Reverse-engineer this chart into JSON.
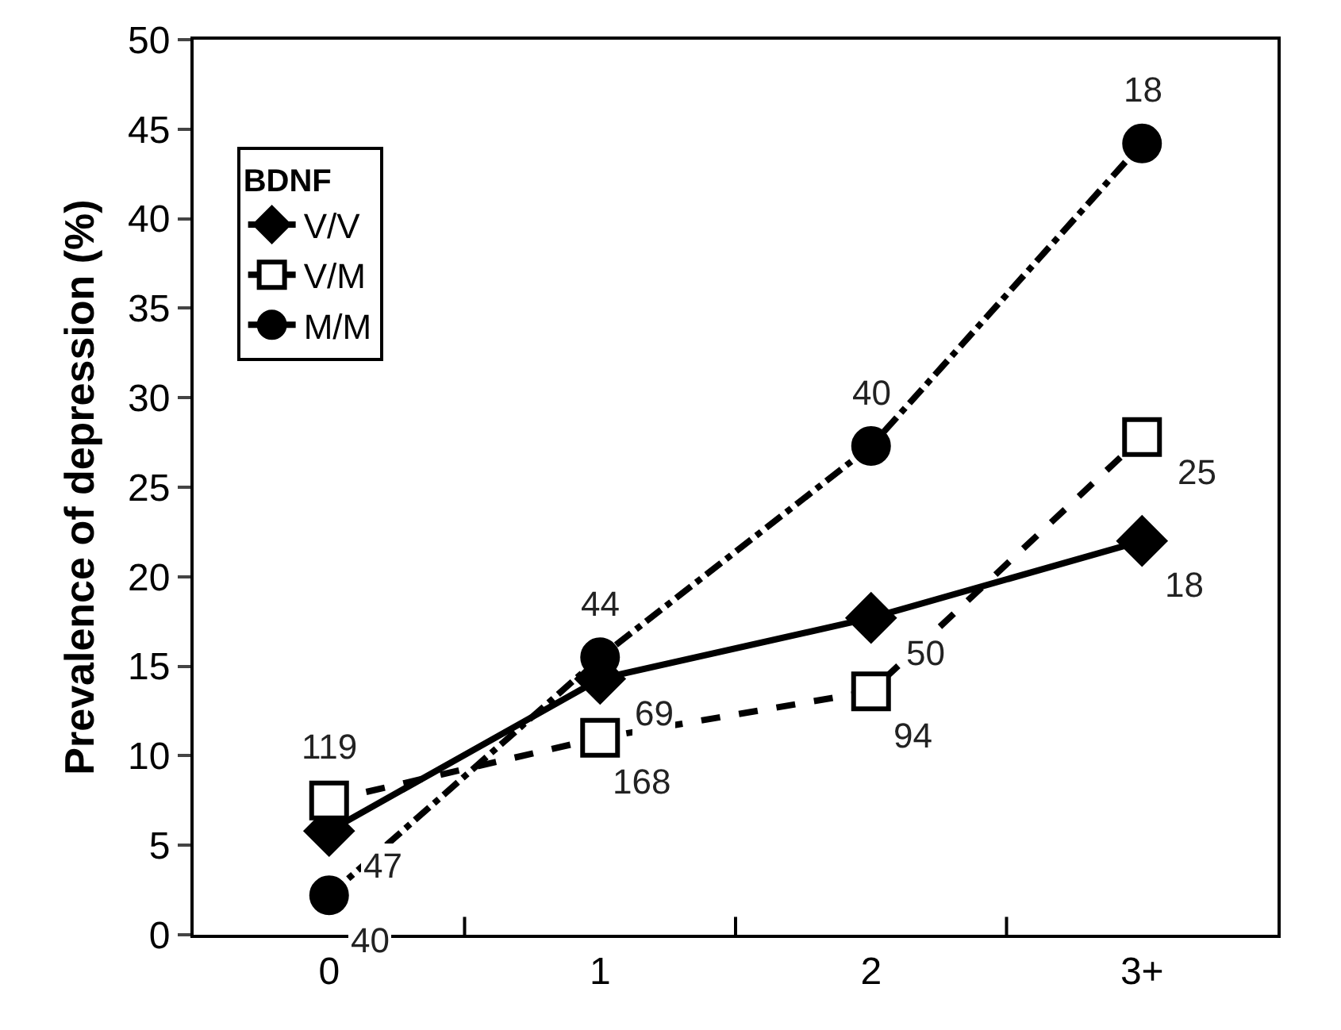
{
  "chart_data": {
    "type": "line",
    "ylabel": "Prevalence of depression (%)",
    "legend_title": "BDNF",
    "categories": [
      "0",
      "1",
      "2",
      "3+"
    ],
    "ylim": [
      0,
      50
    ],
    "yticks": [
      0,
      5,
      10,
      15,
      20,
      25,
      30,
      35,
      40,
      45,
      50
    ],
    "grid": false,
    "legend": "top left",
    "series": [
      {
        "name": "V/V",
        "color": "#000000",
        "marker": "diamond",
        "line_style": "solid",
        "values": [
          5.8,
          14.3,
          17.7,
          22
        ]
      },
      {
        "name": "V/M",
        "color": "#000000",
        "marker": "square",
        "line_style": "dashed",
        "values": [
          7.5,
          11,
          13.6,
          27.8
        ]
      },
      {
        "name": "M/M",
        "color": "#000000",
        "marker": "circle",
        "line_style": "dashdot",
        "values": [
          2.2,
          15.5,
          27.3,
          44.2
        ]
      }
    ],
    "annotations": [
      {
        "text": "47",
        "x": "0",
        "y": 5.8
      },
      {
        "text": "119",
        "x": "0",
        "y": 7.5
      },
      {
        "text": "40",
        "x": "0",
        "y": 2.2
      },
      {
        "text": "69",
        "x": "1",
        "y": 14.3
      },
      {
        "text": "168",
        "x": "1",
        "y": 11
      },
      {
        "text": "44",
        "x": "1",
        "y": 15.5
      },
      {
        "text": "50",
        "x": "2",
        "y": 17.7
      },
      {
        "text": "94",
        "x": "2",
        "y": 13.6
      },
      {
        "text": "40",
        "x": "2",
        "y": 27.3
      },
      {
        "text": "18",
        "x": "3+",
        "y": 22
      },
      {
        "text": "25",
        "x": "3+",
        "y": 27.8
      },
      {
        "text": "18",
        "x": "3+",
        "y": 44.2
      }
    ]
  }
}
